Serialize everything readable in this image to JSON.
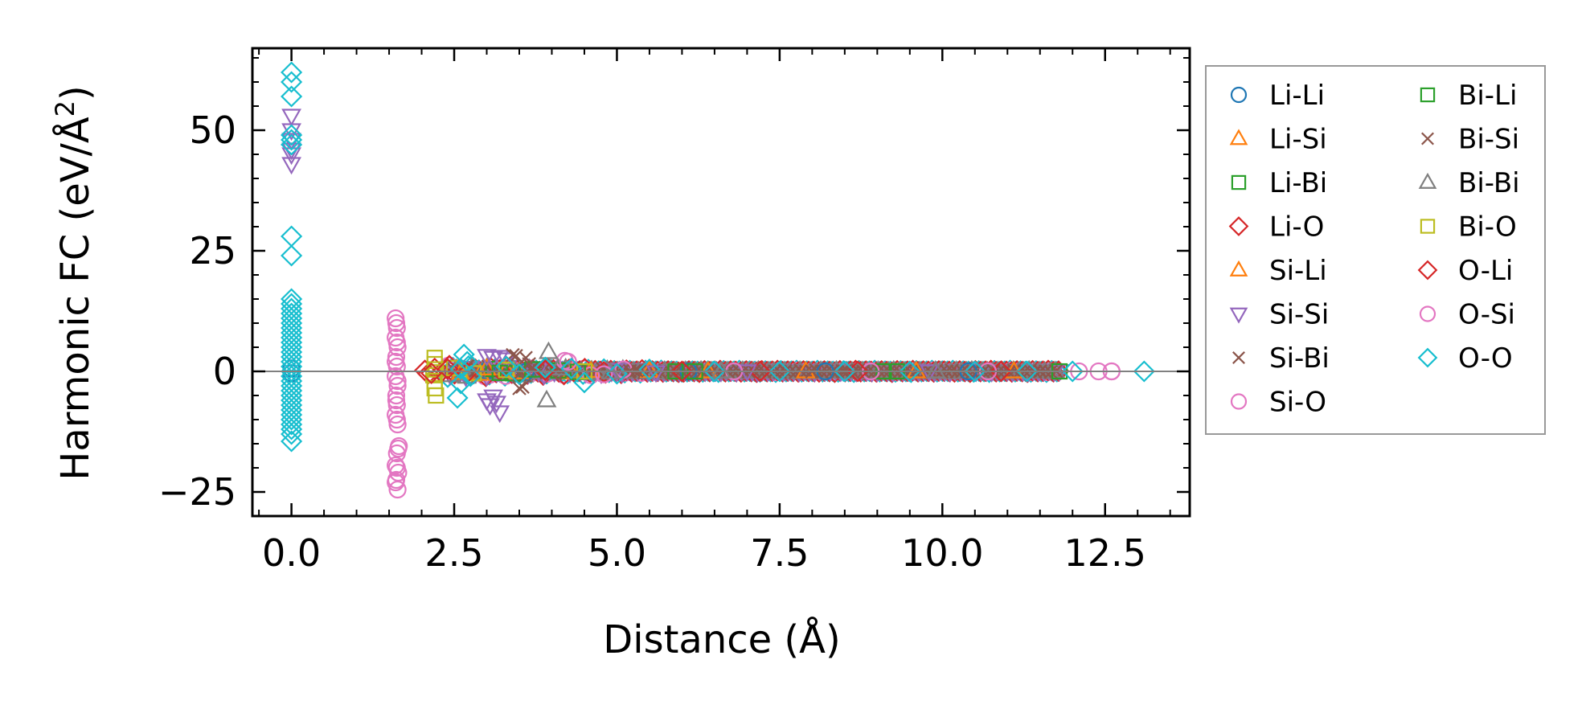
{
  "chart_data": {
    "type": "scatter",
    "title": "",
    "xlabel": "Distance (Å)",
    "ylabel_main": "Harmonic FC (eV/Å",
    "ylabel_sup": "2",
    "ylabel_close": ")",
    "xlim": [
      -0.6,
      13.8
    ],
    "ylim": [
      -30,
      67
    ],
    "xticks": [
      0.0,
      2.5,
      5.0,
      7.5,
      10.0,
      12.5
    ],
    "xtick_labels": [
      "0.0",
      "2.5",
      "5.0",
      "7.5",
      "10.0",
      "12.5"
    ],
    "yticks": [
      -25,
      0,
      25,
      50
    ],
    "ytick_labels": [
      "−25",
      "0",
      "25",
      "50"
    ],
    "zero_line": 0,
    "grid": false,
    "legend_position": "right-outside",
    "legend_columns": 2,
    "series": [
      {
        "name": "Li-Li",
        "marker": "circle",
        "color": "#1f77b4",
        "points": [
          [
            0.0,
            0.6
          ],
          [
            0.0,
            -0.4
          ],
          [
            3.0,
            0.1
          ],
          [
            3.6,
            -0.1
          ],
          [
            6.1,
            0.0
          ],
          [
            8.2,
            0.0
          ],
          [
            10.4,
            0.0
          ]
        ]
      },
      {
        "name": "Li-Si",
        "marker": "triangle-up",
        "color": "#ff7f0e",
        "points": [
          [
            2.55,
            0.4
          ],
          [
            2.9,
            -0.5
          ],
          [
            3.3,
            0.3
          ],
          [
            4.3,
            -0.2
          ],
          [
            5.5,
            0.1
          ],
          [
            7.9,
            0.0
          ],
          [
            11.1,
            0.0
          ]
        ]
      },
      {
        "name": "Li-Bi",
        "marker": "square",
        "color": "#2ca02c",
        "points": [
          [
            3.1,
            0.5
          ],
          [
            3.4,
            -0.4
          ],
          [
            4.1,
            0.2
          ],
          [
            5.9,
            0.0
          ],
          [
            9.1,
            0.0
          ],
          [
            11.8,
            0.0
          ]
        ]
      },
      {
        "name": "Li-O",
        "marker": "diamond",
        "color": "#d62728",
        "points": [
          [
            2.05,
            0.2
          ],
          [
            2.1,
            -0.5
          ],
          [
            2.2,
            0.6
          ],
          [
            2.3,
            -0.2
          ],
          [
            3.2,
            0.3
          ],
          [
            4.8,
            -0.1
          ],
          [
            7.2,
            0.0
          ],
          [
            10.9,
            0.0
          ]
        ]
      },
      {
        "name": "Si-Li",
        "marker": "triangle-up",
        "color": "#ff7f0e",
        "points": [
          [
            2.6,
            -0.3
          ],
          [
            3.0,
            0.6
          ],
          [
            3.5,
            -0.2
          ],
          [
            4.6,
            0.1
          ],
          [
            6.4,
            0.0
          ],
          [
            9.6,
            0.0
          ]
        ]
      },
      {
        "name": "Si-Si",
        "marker": "triangle-down",
        "color": "#9467bd",
        "points": [
          [
            0.0,
            53
          ],
          [
            0.0,
            50
          ],
          [
            0.0,
            48
          ],
          [
            0.0,
            46
          ],
          [
            0.0,
            45
          ],
          [
            0.0,
            43
          ],
          [
            3.0,
            3.2
          ],
          [
            3.1,
            2.8
          ],
          [
            3.2,
            3.0
          ],
          [
            3.3,
            2.5
          ],
          [
            3.0,
            -6.0
          ],
          [
            3.05,
            -7.0
          ],
          [
            3.15,
            -6.5
          ],
          [
            3.2,
            -8.5
          ],
          [
            3.1,
            -5.2
          ],
          [
            3.8,
            0.5
          ],
          [
            5.0,
            0.3
          ],
          [
            5.6,
            -0.2
          ],
          [
            7.0,
            0.0
          ],
          [
            9.8,
            0.0
          ]
        ]
      },
      {
        "name": "Si-Bi",
        "marker": "x",
        "color": "#8c564b",
        "points": [
          [
            3.4,
            3.4
          ],
          [
            3.5,
            -0.6
          ],
          [
            3.6,
            2.8
          ],
          [
            3.55,
            -3.2
          ],
          [
            3.7,
            0.7
          ],
          [
            4.2,
            -0.3
          ],
          [
            5.3,
            0.2
          ],
          [
            8.5,
            0.0
          ],
          [
            11.5,
            0.0
          ]
        ]
      },
      {
        "name": "Si-O",
        "marker": "circle",
        "color": "#e377c2",
        "points": [
          [
            1.6,
            11
          ],
          [
            1.62,
            9
          ],
          [
            1.6,
            7
          ],
          [
            1.63,
            5
          ],
          [
            1.61,
            3
          ],
          [
            1.62,
            1
          ],
          [
            1.6,
            -1
          ],
          [
            1.63,
            -3
          ],
          [
            1.61,
            -5
          ],
          [
            1.62,
            -7
          ],
          [
            1.6,
            -9
          ],
          [
            1.63,
            -11
          ],
          [
            1.65,
            -15.5
          ],
          [
            1.62,
            -17
          ],
          [
            1.6,
            -19.5
          ],
          [
            1.64,
            -21
          ],
          [
            1.61,
            -22.5
          ],
          [
            1.63,
            -24.5
          ],
          [
            4.2,
            2.2
          ],
          [
            4.6,
            -0.8
          ],
          [
            5.1,
            0.4
          ],
          [
            6.8,
            0.0
          ],
          [
            8.9,
            0.0
          ],
          [
            10.7,
            0.0
          ],
          [
            12.1,
            0.0
          ],
          [
            12.4,
            0.0
          ],
          [
            12.6,
            0.0
          ]
        ]
      },
      {
        "name": "Bi-Li",
        "marker": "square",
        "color": "#2ca02c",
        "points": [
          [
            3.2,
            -0.3
          ],
          [
            3.7,
            0.4
          ],
          [
            4.4,
            -0.1
          ],
          [
            6.2,
            0.0
          ],
          [
            9.3,
            0.0
          ]
        ]
      },
      {
        "name": "Bi-Si",
        "marker": "x",
        "color": "#8c564b",
        "points": [
          [
            3.45,
            3.2
          ],
          [
            3.5,
            -3.5
          ],
          [
            3.65,
            1.5
          ],
          [
            4.0,
            -0.4
          ],
          [
            5.2,
            0.1
          ],
          [
            8.0,
            0.0
          ]
        ]
      },
      {
        "name": "Bi-Bi",
        "marker": "triangle-up",
        "color": "#7f7f7f",
        "points": [
          [
            3.95,
            4.0
          ],
          [
            3.92,
            -6.0
          ],
          [
            4.1,
            0.6
          ],
          [
            4.9,
            -0.2
          ],
          [
            6.6,
            0.0
          ],
          [
            9.9,
            0.0
          ]
        ]
      },
      {
        "name": "Bi-O",
        "marker": "square",
        "color": "#bcbd22",
        "points": [
          [
            2.2,
            2.8
          ],
          [
            2.2,
            1.5
          ],
          [
            2.22,
            0.4
          ],
          [
            2.18,
            -0.8
          ],
          [
            2.2,
            -2.0
          ],
          [
            2.2,
            -3.5
          ],
          [
            2.22,
            -5.0
          ],
          [
            2.5,
            0.7
          ],
          [
            2.8,
            -0.4
          ],
          [
            3.3,
            0.3
          ],
          [
            4.5,
            0.0
          ]
        ]
      },
      {
        "name": "O-Li",
        "marker": "diamond",
        "color": "#d62728",
        "points": [
          [
            2.15,
            -0.4
          ],
          [
            2.4,
            0.5
          ],
          [
            2.7,
            -0.3
          ],
          [
            3.9,
            0.2
          ],
          [
            6.0,
            0.0
          ],
          [
            8.7,
            0.0
          ]
        ]
      },
      {
        "name": "O-Si",
        "marker": "circle",
        "color": "#e377c2",
        "points": [
          [
            1.61,
            10
          ],
          [
            1.62,
            6
          ],
          [
            1.6,
            2
          ],
          [
            1.63,
            -2
          ],
          [
            1.61,
            -6
          ],
          [
            1.62,
            -10
          ],
          [
            1.64,
            -16
          ],
          [
            1.62,
            -20
          ],
          [
            1.6,
            -23
          ],
          [
            4.25,
            2.0
          ],
          [
            4.8,
            -0.6
          ],
          [
            12.6,
            0.0
          ]
        ]
      },
      {
        "name": "O-O",
        "marker": "diamond",
        "color": "#17becf",
        "points": [
          [
            0.0,
            62
          ],
          [
            0.0,
            60
          ],
          [
            0.0,
            57
          ],
          [
            0.0,
            49
          ],
          [
            0.0,
            48
          ],
          [
            0.0,
            47
          ],
          [
            0.0,
            28
          ],
          [
            0.0,
            24
          ],
          [
            0.0,
            15
          ],
          [
            0.0,
            14
          ],
          [
            0.0,
            13
          ],
          [
            0.0,
            12
          ],
          [
            0.0,
            11
          ],
          [
            0.0,
            10
          ],
          [
            0.0,
            9
          ],
          [
            0.0,
            8
          ],
          [
            0.0,
            7
          ],
          [
            0.0,
            6
          ],
          [
            0.0,
            5
          ],
          [
            0.0,
            4
          ],
          [
            0.0,
            3
          ],
          [
            0.0,
            2
          ],
          [
            0.0,
            1
          ],
          [
            0.0,
            0
          ],
          [
            0.0,
            -1
          ],
          [
            0.0,
            -2
          ],
          [
            0.0,
            -3
          ],
          [
            0.0,
            -4
          ],
          [
            0.0,
            -5
          ],
          [
            0.0,
            -6
          ],
          [
            0.0,
            -7
          ],
          [
            0.0,
            -8
          ],
          [
            0.0,
            -9
          ],
          [
            0.0,
            -10
          ],
          [
            0.0,
            -11
          ],
          [
            0.0,
            -12
          ],
          [
            0.0,
            -13
          ],
          [
            0.0,
            -14.5
          ],
          [
            2.55,
            -5.5
          ],
          [
            2.6,
            -2.5
          ],
          [
            2.65,
            3.5
          ],
          [
            2.7,
            2.0
          ],
          [
            2.6,
            0.5
          ],
          [
            2.75,
            -1.0
          ],
          [
            3.3,
            1.0
          ],
          [
            3.5,
            -0.6
          ],
          [
            3.9,
            0.8
          ],
          [
            4.5,
            -2.3
          ],
          [
            4.3,
            0.6
          ],
          [
            5.0,
            -0.5
          ],
          [
            5.5,
            0.4
          ],
          [
            6.5,
            0.0
          ],
          [
            7.5,
            0.0
          ],
          [
            8.5,
            0.0
          ],
          [
            9.5,
            0.0
          ],
          [
            10.5,
            0.0
          ],
          [
            11.3,
            0.0
          ],
          [
            12.0,
            0.0
          ],
          [
            13.1,
            0.0
          ]
        ]
      }
    ],
    "dense_band": {
      "x_start": 2.4,
      "x_end": 11.8,
      "series": [
        "O-O",
        "Si-O",
        "Li-O",
        "Si-Si",
        "Bi-Bi",
        "Si-Bi"
      ],
      "y_spread": [
        -1.2,
        1.2,
        -0.8,
        0.8,
        -0.5,
        0.5,
        -0.3,
        0.3,
        -0.15,
        0.15,
        0.0
      ]
    }
  }
}
